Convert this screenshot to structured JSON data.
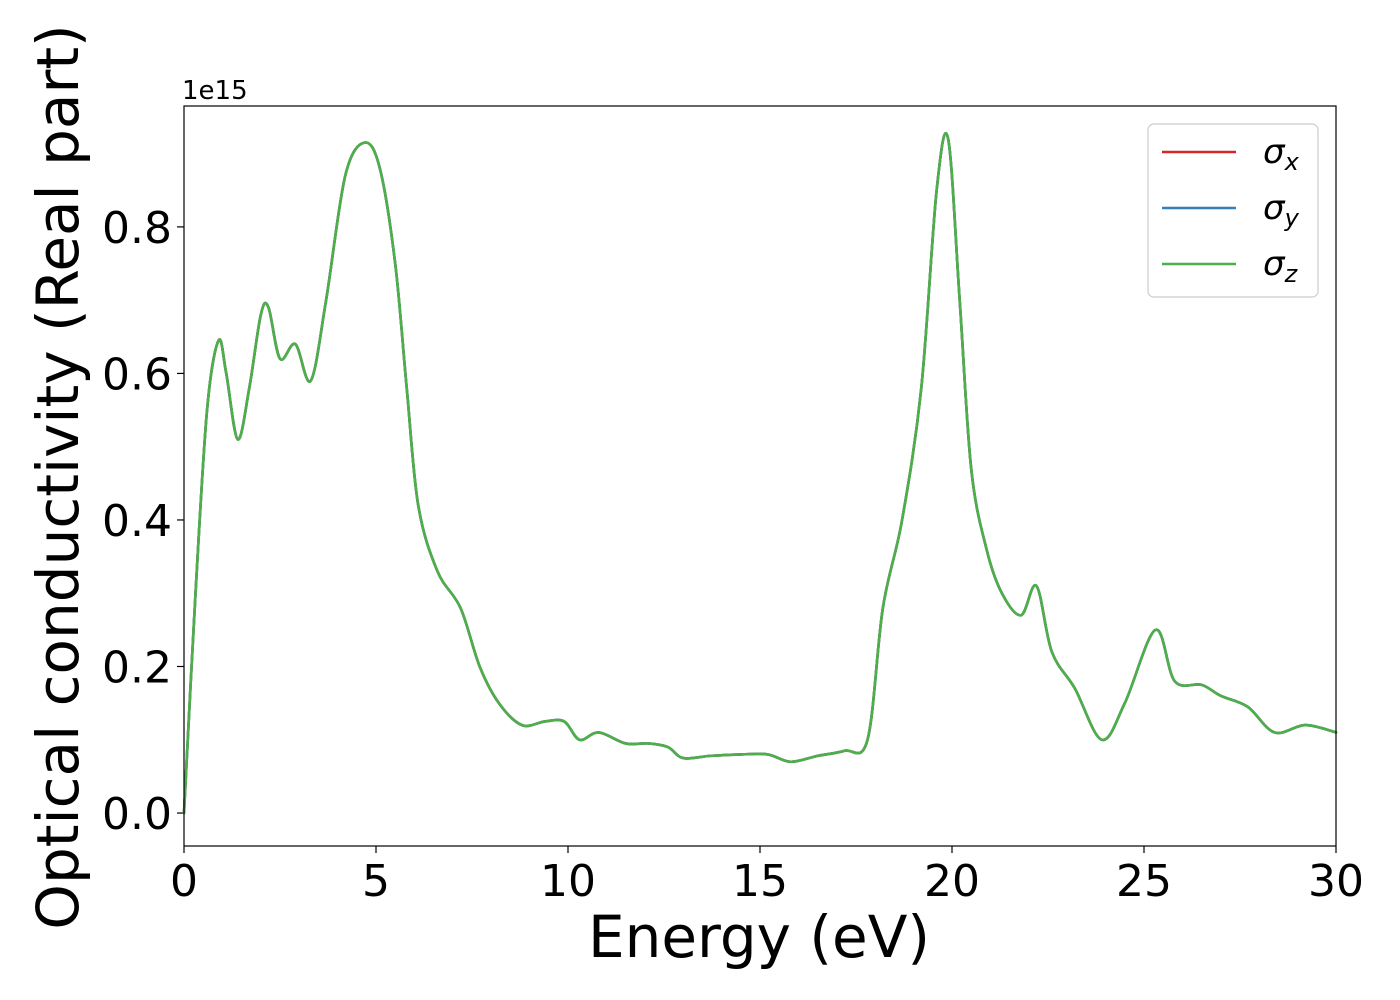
{
  "chart_data": {
    "type": "line",
    "title": "",
    "xlabel": "Energy (eV)",
    "ylabel": "Optical conductivity (Real part)",
    "y_offset_label": "1e15",
    "y_scale": 1000000000000000.0,
    "xlim": [
      0,
      30
    ],
    "ylim": [
      -0.045,
      0.965
    ],
    "x_ticks": [
      0,
      5,
      10,
      15,
      20,
      25,
      30
    ],
    "x_tick_labels": [
      "0",
      "5",
      "10",
      "15",
      "20",
      "25",
      "30"
    ],
    "y_ticks": [
      0.0,
      0.2,
      0.4,
      0.6,
      0.8
    ],
    "y_tick_labels": [
      "0.0",
      "0.2",
      "0.4",
      "0.6",
      "0.8"
    ],
    "grid": false,
    "legend_position": "top-right",
    "series": [
      {
        "name": "σx",
        "symbol": "σ",
        "subscript": "x",
        "color": "#d62728",
        "x": [
          0,
          0.3,
          0.6,
          0.9,
          1.1,
          1.4,
          1.7,
          2.0,
          2.2,
          2.5,
          2.9,
          3.3,
          3.7,
          4.2,
          4.7,
          5.1,
          5.5,
          5.8,
          6.1,
          6.6,
          7.2,
          7.7,
          8.2,
          8.8,
          9.4,
          9.9,
          10.3,
          10.8,
          11.5,
          12.1,
          12.6,
          13.0,
          13.7,
          14.5,
          15.2,
          15.8,
          16.5,
          17.2,
          17.8,
          18.2,
          18.7,
          19.2,
          19.6,
          19.9,
          20.2,
          20.5,
          20.9,
          21.3,
          21.8,
          22.2,
          22.6,
          23.2,
          23.9,
          24.5,
          25.3,
          25.8,
          26.5,
          27.0,
          27.7,
          28.4,
          29.2,
          30.0
        ],
        "values": [
          0.0,
          0.3,
          0.55,
          0.645,
          0.6,
          0.51,
          0.58,
          0.68,
          0.69,
          0.62,
          0.64,
          0.59,
          0.7,
          0.87,
          0.915,
          0.88,
          0.75,
          0.58,
          0.42,
          0.33,
          0.28,
          0.2,
          0.15,
          0.12,
          0.125,
          0.125,
          0.1,
          0.11,
          0.095,
          0.095,
          0.09,
          0.075,
          0.078,
          0.08,
          0.08,
          0.07,
          0.078,
          0.085,
          0.1,
          0.28,
          0.4,
          0.58,
          0.85,
          0.92,
          0.7,
          0.47,
          0.36,
          0.3,
          0.27,
          0.31,
          0.22,
          0.17,
          0.1,
          0.15,
          0.25,
          0.18,
          0.175,
          0.16,
          0.145,
          0.11,
          0.12,
          0.11
        ]
      },
      {
        "name": "σy",
        "symbol": "σ",
        "subscript": "y",
        "color": "#377eb8",
        "x": [
          0,
          0.3,
          0.6,
          0.9,
          1.1,
          1.4,
          1.7,
          2.0,
          2.2,
          2.5,
          2.9,
          3.3,
          3.7,
          4.2,
          4.7,
          5.1,
          5.5,
          5.8,
          6.1,
          6.6,
          7.2,
          7.7,
          8.2,
          8.8,
          9.4,
          9.9,
          10.3,
          10.8,
          11.5,
          12.1,
          12.6,
          13.0,
          13.7,
          14.5,
          15.2,
          15.8,
          16.5,
          17.2,
          17.8,
          18.2,
          18.7,
          19.2,
          19.6,
          19.9,
          20.2,
          20.5,
          20.9,
          21.3,
          21.8,
          22.2,
          22.6,
          23.2,
          23.9,
          24.5,
          25.3,
          25.8,
          26.5,
          27.0,
          27.7,
          28.4,
          29.2,
          30.0
        ],
        "values": [
          0.0,
          0.3,
          0.55,
          0.645,
          0.6,
          0.51,
          0.58,
          0.68,
          0.69,
          0.62,
          0.64,
          0.59,
          0.7,
          0.87,
          0.915,
          0.88,
          0.75,
          0.58,
          0.42,
          0.33,
          0.28,
          0.2,
          0.15,
          0.12,
          0.125,
          0.125,
          0.1,
          0.11,
          0.095,
          0.095,
          0.09,
          0.075,
          0.078,
          0.08,
          0.08,
          0.07,
          0.078,
          0.085,
          0.1,
          0.28,
          0.4,
          0.58,
          0.85,
          0.92,
          0.7,
          0.47,
          0.36,
          0.3,
          0.27,
          0.31,
          0.22,
          0.17,
          0.1,
          0.15,
          0.25,
          0.18,
          0.175,
          0.16,
          0.145,
          0.11,
          0.12,
          0.11
        ]
      },
      {
        "name": "σz",
        "symbol": "σ",
        "subscript": "z",
        "color": "#4daf4a",
        "x": [
          0,
          0.3,
          0.6,
          0.9,
          1.1,
          1.4,
          1.7,
          2.0,
          2.2,
          2.5,
          2.9,
          3.3,
          3.7,
          4.2,
          4.7,
          5.1,
          5.5,
          5.8,
          6.1,
          6.6,
          7.2,
          7.7,
          8.2,
          8.8,
          9.4,
          9.9,
          10.3,
          10.8,
          11.5,
          12.1,
          12.6,
          13.0,
          13.7,
          14.5,
          15.2,
          15.8,
          16.5,
          17.2,
          17.8,
          18.2,
          18.7,
          19.2,
          19.6,
          19.9,
          20.2,
          20.5,
          20.9,
          21.3,
          21.8,
          22.2,
          22.6,
          23.2,
          23.9,
          24.5,
          25.3,
          25.8,
          26.5,
          27.0,
          27.7,
          28.4,
          29.2,
          30.0
        ],
        "values": [
          0.0,
          0.3,
          0.55,
          0.645,
          0.6,
          0.51,
          0.58,
          0.68,
          0.69,
          0.62,
          0.64,
          0.59,
          0.7,
          0.87,
          0.915,
          0.88,
          0.75,
          0.58,
          0.42,
          0.33,
          0.28,
          0.2,
          0.15,
          0.12,
          0.125,
          0.125,
          0.1,
          0.11,
          0.095,
          0.095,
          0.09,
          0.075,
          0.078,
          0.08,
          0.08,
          0.07,
          0.078,
          0.085,
          0.1,
          0.28,
          0.4,
          0.58,
          0.85,
          0.92,
          0.7,
          0.47,
          0.36,
          0.3,
          0.27,
          0.31,
          0.22,
          0.17,
          0.1,
          0.15,
          0.25,
          0.18,
          0.175,
          0.16,
          0.145,
          0.11,
          0.12,
          0.11
        ]
      }
    ]
  }
}
